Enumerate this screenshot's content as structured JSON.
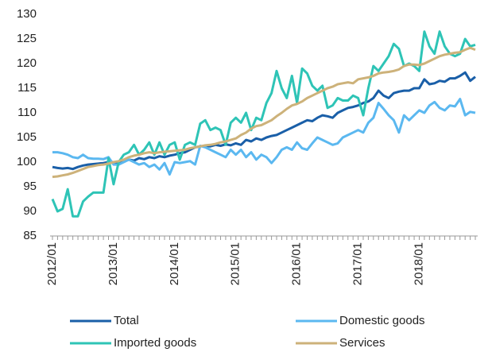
{
  "chart_data": {
    "type": "line",
    "categories": [
      "2012/01",
      null,
      null,
      null,
      null,
      null,
      null,
      null,
      null,
      null,
      null,
      null,
      "2013/01",
      null,
      null,
      null,
      null,
      null,
      null,
      null,
      null,
      null,
      null,
      null,
      "2014/01",
      null,
      null,
      null,
      null,
      null,
      null,
      null,
      null,
      null,
      null,
      null,
      "2015/01",
      null,
      null,
      null,
      null,
      null,
      null,
      null,
      null,
      null,
      null,
      null,
      "2016/01",
      null,
      null,
      null,
      null,
      null,
      null,
      null,
      null,
      null,
      null,
      null,
      "2017/01",
      null,
      null,
      null,
      null,
      null,
      null,
      null,
      null,
      null,
      null,
      null,
      "2018/01",
      null,
      null,
      null,
      null,
      null,
      null,
      null,
      null,
      null,
      null,
      null
    ],
    "series": [
      {
        "name": "Total",
        "color": "#1a5fa8",
        "values": [
          99,
          98.8,
          98.7,
          98.8,
          98.6,
          99,
          99.3,
          99.5,
          99.6,
          99.7,
          99.8,
          100,
          100,
          99.8,
          100.2,
          100.5,
          100.3,
          100.8,
          100.6,
          101,
          100.8,
          101.2,
          101,
          101.3,
          101.5,
          101.8,
          102,
          102.5,
          103,
          103.2,
          103.3,
          103.2,
          103.5,
          103.3,
          103.6,
          103.4,
          103.8,
          103.5,
          104.5,
          104.2,
          104.8,
          104.5,
          105,
          105.3,
          105.5,
          106,
          106.5,
          107,
          107.5,
          108,
          108.5,
          108.3,
          109,
          109.5,
          109.3,
          109,
          110,
          110.5,
          111,
          111.2,
          111.5,
          112,
          112.3,
          113,
          114.5,
          113.5,
          113,
          114,
          114.3,
          114.5,
          114.5,
          115,
          115,
          116.8,
          115.8,
          116,
          116.5,
          116.3,
          117,
          117,
          117.5,
          118.2,
          116.5,
          117.3
        ]
      },
      {
        "name": "Domestic goods",
        "color": "#5bb8f0",
        "values": [
          102,
          102,
          101.8,
          101.5,
          101,
          100.8,
          101.5,
          100.8,
          100.7,
          100.7,
          100.6,
          101,
          99.5,
          99.5,
          100,
          100.5,
          100,
          99.5,
          99.8,
          99,
          99.5,
          98.5,
          99.8,
          97.5,
          100,
          99.8,
          100,
          100.2,
          99.5,
          103.3,
          103,
          102.5,
          102,
          101.5,
          101,
          102.5,
          101.5,
          102.5,
          101,
          102,
          100.5,
          101.5,
          101,
          99.8,
          101,
          102.5,
          103,
          102.5,
          104,
          102.8,
          102.5,
          103.8,
          105,
          104.5,
          104,
          103.5,
          103.8,
          105,
          105.5,
          106,
          106.5,
          106,
          108,
          109,
          112,
          110.8,
          109.5,
          108.5,
          106,
          109.5,
          108.5,
          109.5,
          110.5,
          110,
          111.5,
          112.2,
          111,
          110.5,
          111.5,
          111.3,
          112.8,
          109.5,
          110.2,
          110
        ]
      },
      {
        "name": "Imported goods",
        "color": "#2ec4b6",
        "values": [
          92.5,
          90,
          90.5,
          94.5,
          89,
          89,
          92,
          93,
          93.8,
          93.8,
          93.8,
          100.8,
          95.5,
          100,
          101.5,
          102,
          103.5,
          101.5,
          102.5,
          104,
          101.5,
          104,
          101.5,
          103.5,
          104,
          100.5,
          103.5,
          104,
          103.5,
          107.8,
          108.5,
          106.5,
          107,
          106.5,
          103.5,
          108,
          109,
          108,
          110,
          106.5,
          109,
          108.5,
          112,
          114,
          118.5,
          115,
          113,
          117.5,
          112,
          119,
          118,
          115.5,
          114.5,
          115.5,
          111,
          111.5,
          113,
          112.5,
          112.5,
          113.5,
          113,
          109.5,
          115,
          119.5,
          118.5,
          120,
          121.5,
          124,
          123,
          119.5,
          120,
          119.5,
          118.5,
          126.5,
          123.5,
          122,
          126.5,
          123.5,
          122,
          121.5,
          122,
          125,
          123.5,
          123.8
        ]
      },
      {
        "name": "Services",
        "color": "#cdb27a",
        "values": [
          97,
          97.1,
          97.3,
          97.5,
          97.8,
          98.2,
          98.6,
          99,
          99.2,
          99.4,
          99.5,
          99.7,
          100,
          100.2,
          100.5,
          101,
          101.3,
          101.5,
          101.8,
          102,
          101.8,
          102,
          102.1,
          102.2,
          102.3,
          102.4,
          102.5,
          102.8,
          103,
          103.2,
          103.4,
          103.5,
          103.7,
          104,
          104.2,
          104.5,
          104.8,
          105.5,
          106,
          106.8,
          107.3,
          107.5,
          108,
          108.5,
          109.3,
          110,
          110.8,
          111.5,
          111.8,
          112.3,
          113,
          113.5,
          114,
          114.5,
          115,
          115.3,
          115.8,
          116,
          116.2,
          116,
          116.8,
          117,
          117.2,
          117.5,
          118,
          118.2,
          118.3,
          118.5,
          118.8,
          119.5,
          119.8,
          119.8,
          119.7,
          120,
          120.5,
          121,
          121.5,
          121.8,
          122,
          122.2,
          122.3,
          122.8,
          123.2,
          122.8
        ]
      }
    ],
    "ylim": [
      85,
      130
    ],
    "yticks": [
      85,
      90,
      95,
      100,
      105,
      110,
      115,
      120,
      125,
      130
    ],
    "grid": false,
    "legend": "bottom"
  }
}
